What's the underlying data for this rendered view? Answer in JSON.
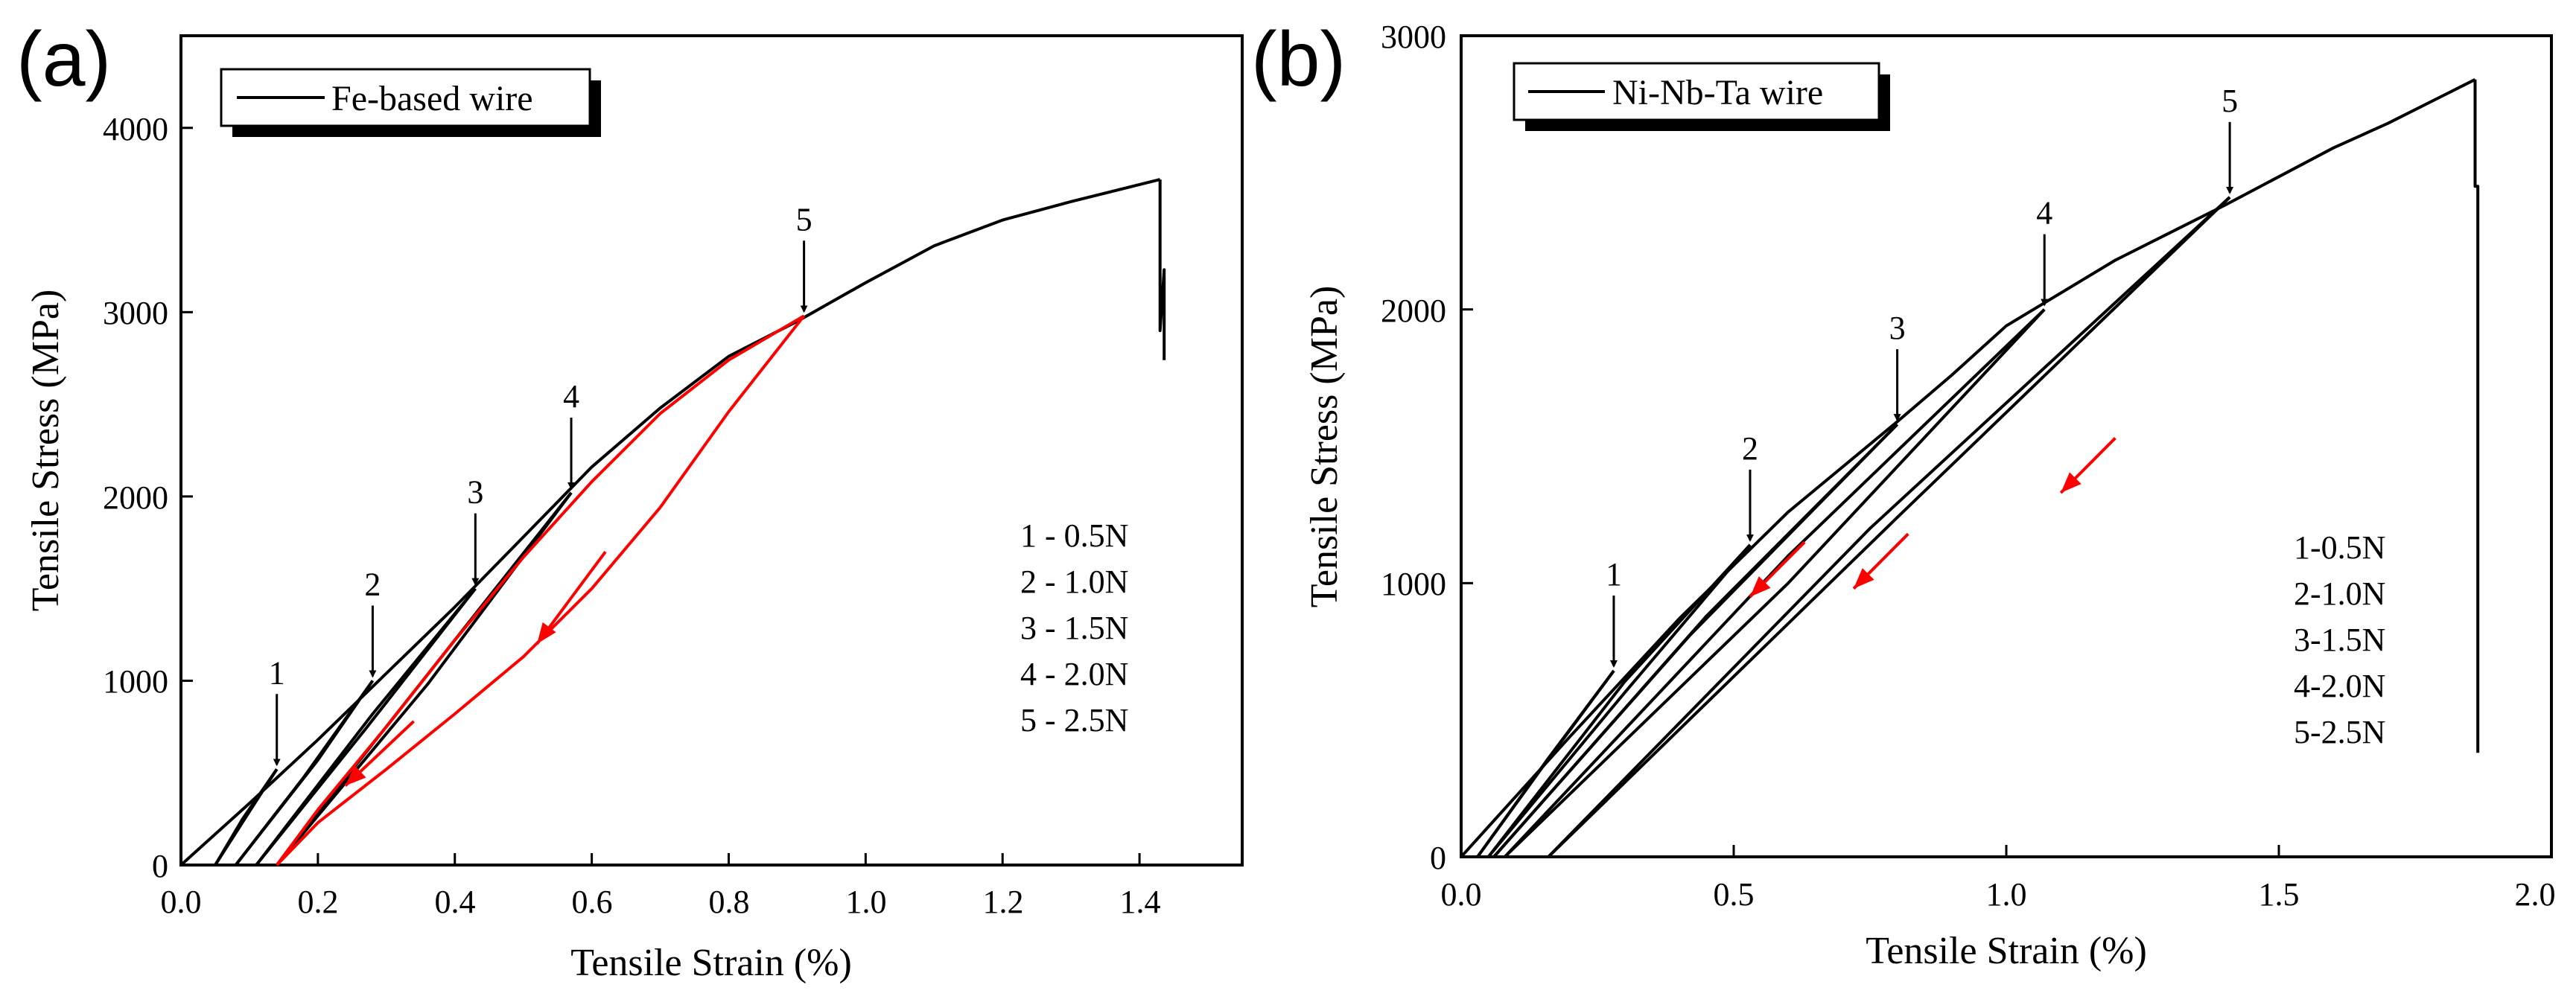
{
  "colors": {
    "black": "#000000",
    "red": "#ff0000"
  },
  "chart_data": [
    {
      "type": "line",
      "panel_label": "(a)",
      "xlabel": "Tensile Strain (%)",
      "ylabel": "Tensile Stress (MPa)",
      "xlim": [
        0.0,
        1.55
      ],
      "ylim": [
        0,
        4500
      ],
      "xticks": [
        0.0,
        0.2,
        0.4,
        0.6,
        0.8,
        1.0,
        1.2,
        1.4
      ],
      "xtick_labels": [
        "0.0",
        "0.2",
        "0.4",
        "0.6",
        "0.8",
        "1.0",
        "1.2",
        "1.4"
      ],
      "yticks": [
        0,
        1000,
        2000,
        3000,
        4000
      ],
      "ytick_labels": [
        "0",
        "1000",
        "2000",
        "3000",
        "4000"
      ],
      "legend": {
        "label": "Fe-based wire",
        "position": "top-left"
      },
      "load_legend": [
        "1 - 0.5N",
        "2 - 1.0N",
        "3 - 1.5N",
        "4 - 2.0N",
        "5 - 2.5N"
      ],
      "markers": [
        {
          "label": "1",
          "x": 0.14,
          "y": 520
        },
        {
          "label": "2",
          "x": 0.28,
          "y": 1000
        },
        {
          "label": "3",
          "x": 0.43,
          "y": 1500
        },
        {
          "label": "4",
          "x": 0.57,
          "y": 2020
        },
        {
          "label": "5",
          "x": 0.91,
          "y": 2980
        }
      ],
      "series": [
        {
          "name": "loading-envelope",
          "color": "#000000",
          "x": [
            0.0,
            0.1,
            0.2,
            0.3,
            0.4,
            0.5,
            0.6,
            0.7,
            0.8,
            0.9,
            1.0,
            1.1,
            1.2,
            1.3,
            1.43
          ],
          "y": [
            0,
            335,
            680,
            1040,
            1400,
            1780,
            2160,
            2480,
            2760,
            2950,
            3160,
            3360,
            3500,
            3600,
            3720
          ]
        },
        {
          "name": "fracture",
          "color": "#000000",
          "x": [
            1.43,
            1.43,
            1.436,
            1.436
          ],
          "y": [
            3720,
            2900,
            3230,
            2740
          ]
        },
        {
          "name": "unload-1",
          "color": "#000000",
          "x": [
            0.14,
            0.09,
            0.05
          ],
          "y": [
            520,
            250,
            0
          ]
        },
        {
          "name": "reload-1",
          "color": "#000000",
          "x": [
            0.05,
            0.1,
            0.14
          ],
          "y": [
            0,
            290,
            520
          ]
        },
        {
          "name": "unload-2",
          "color": "#000000",
          "x": [
            0.28,
            0.18,
            0.08
          ],
          "y": [
            1000,
            480,
            0
          ]
        },
        {
          "name": "reload-2",
          "color": "#000000",
          "x": [
            0.08,
            0.2,
            0.28
          ],
          "y": [
            0,
            570,
            1000
          ]
        },
        {
          "name": "unload-3",
          "color": "#000000",
          "x": [
            0.43,
            0.27,
            0.11
          ],
          "y": [
            1500,
            740,
            0
          ]
        },
        {
          "name": "reload-3",
          "color": "#000000",
          "x": [
            0.11,
            0.28,
            0.43
          ],
          "y": [
            0,
            820,
            1500
          ]
        },
        {
          "name": "unload-4",
          "color": "#000000",
          "x": [
            0.57,
            0.36,
            0.14
          ],
          "y": [
            2020,
            980,
            0
          ]
        },
        {
          "name": "reload-4",
          "color": "#000000",
          "x": [
            0.14,
            0.37,
            0.57
          ],
          "y": [
            0,
            1080,
            2020
          ]
        },
        {
          "name": "unload-5",
          "color": "#ff0000",
          "x": [
            0.91,
            0.8,
            0.7,
            0.6,
            0.5,
            0.4,
            0.3,
            0.2,
            0.14
          ],
          "y": [
            2980,
            2460,
            1940,
            1500,
            1130,
            820,
            520,
            230,
            0
          ]
        },
        {
          "name": "reload-5",
          "color": "#ff0000",
          "x": [
            0.14,
            0.2,
            0.3,
            0.4,
            0.5,
            0.6,
            0.7,
            0.8,
            0.91
          ],
          "y": [
            0,
            300,
            750,
            1220,
            1670,
            2080,
            2450,
            2740,
            2980
          ]
        }
      ],
      "unload_arrows": [
        {
          "x": 0.62,
          "y": 1700,
          "dir_x": -0.1,
          "dir_y": -500
        },
        {
          "x": 0.34,
          "y": 780,
          "dir_x": -0.1,
          "dir_y": -350
        }
      ]
    },
    {
      "type": "line",
      "panel_label": "(b)",
      "xlabel": "Tensile Strain (%)",
      "ylabel": "Tensile Stress (MPa)",
      "xlim": [
        0.0,
        2.0
      ],
      "ylim": [
        0,
        3000
      ],
      "xticks": [
        0.0,
        0.5,
        1.0,
        1.5,
        2.0
      ],
      "xtick_labels": [
        "0.0",
        "0.5",
        "1.0",
        "1.5",
        "2.0"
      ],
      "yticks": [
        0,
        1000,
        2000,
        3000
      ],
      "ytick_labels": [
        "0",
        "1000",
        "2000",
        "3000"
      ],
      "legend": {
        "label": "Ni-Nb-Ta wire",
        "position": "top-left"
      },
      "load_legend": [
        "1-0.5N",
        "2-1.0N",
        "3-1.5N",
        "4-2.0N",
        "5-2.5N"
      ],
      "markers": [
        {
          "label": "1",
          "x": 0.28,
          "y": 680
        },
        {
          "label": "2",
          "x": 0.53,
          "y": 1140
        },
        {
          "label": "3",
          "x": 0.8,
          "y": 1580
        },
        {
          "label": "4",
          "x": 1.07,
          "y": 2000
        },
        {
          "label": "5",
          "x": 1.41,
          "y": 2410
        }
      ],
      "series": [
        {
          "name": "loading-envelope",
          "color": "#000000",
          "x": [
            0.0,
            0.2,
            0.4,
            0.6,
            0.8,
            0.9,
            1.0,
            1.2,
            1.4,
            1.6,
            1.7,
            1.8,
            1.86
          ],
          "y": [
            0,
            440,
            870,
            1260,
            1590,
            1760,
            1940,
            2180,
            2380,
            2590,
            2680,
            2780,
            2840
          ]
        },
        {
          "name": "fracture",
          "color": "#000000",
          "x": [
            1.86,
            1.86,
            1.865,
            1.865
          ],
          "y": [
            2840,
            2450,
            2450,
            380
          ]
        },
        {
          "name": "unload-1",
          "color": "#000000",
          "x": [
            0.28,
            0.15,
            0.03
          ],
          "y": [
            680,
            330,
            0
          ]
        },
        {
          "name": "reload-1",
          "color": "#000000",
          "x": [
            0.03,
            0.16,
            0.28
          ],
          "y": [
            0,
            360,
            680
          ]
        },
        {
          "name": "unload-2",
          "color": "#000000",
          "x": [
            0.53,
            0.3,
            0.05
          ],
          "y": [
            1140,
            600,
            0
          ]
        },
        {
          "name": "reload-2",
          "color": "#000000",
          "x": [
            0.05,
            0.3,
            0.53
          ],
          "y": [
            0,
            640,
            1140
          ]
        },
        {
          "name": "unload-3",
          "color": "#000000",
          "x": [
            0.8,
            0.42,
            0.06
          ],
          "y": [
            1580,
            810,
            0
          ]
        },
        {
          "name": "reload-3",
          "color": "#000000",
          "x": [
            0.06,
            0.45,
            0.8
          ],
          "y": [
            0,
            880,
            1580
          ]
        },
        {
          "name": "unload-4",
          "color": "#000000",
          "x": [
            1.07,
            0.6,
            0.08
          ],
          "y": [
            2000,
            1000,
            0
          ]
        },
        {
          "name": "reload-4",
          "color": "#000000",
          "x": [
            0.08,
            0.6,
            1.07
          ],
          "y": [
            0,
            1100,
            2000
          ]
        },
        {
          "name": "unload-5",
          "color": "#000000",
          "x": [
            1.41,
            0.8,
            0.16
          ],
          "y": [
            2410,
            1240,
            0
          ]
        },
        {
          "name": "reload-5",
          "color": "#000000",
          "x": [
            0.16,
            0.75,
            1.41
          ],
          "y": [
            0,
            1200,
            2410
          ]
        }
      ],
      "unload_arrows": [
        {
          "x": 0.63,
          "y": 1150,
          "dir_x": -0.1,
          "dir_y": -200
        },
        {
          "x": 0.82,
          "y": 1180,
          "dir_x": -0.1,
          "dir_y": -200
        },
        {
          "x": 1.2,
          "y": 1530,
          "dir_x": -0.1,
          "dir_y": -200
        }
      ]
    }
  ]
}
